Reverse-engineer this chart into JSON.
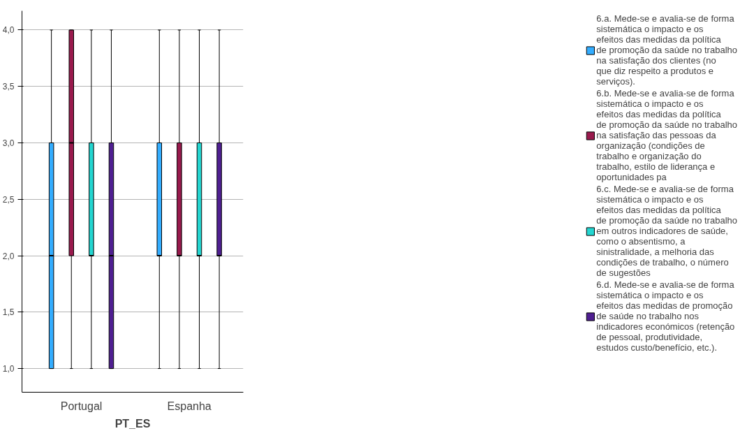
{
  "chart_data": {
    "type": "box",
    "xlabel": "PT_ES",
    "categories": [
      "Portugal",
      "Espanha"
    ],
    "ylim": [
      0.79,
      4.17
    ],
    "yticks": [
      {
        "value": 1,
        "label": "1,0"
      },
      {
        "value": 1.5,
        "label": "1,5"
      },
      {
        "value": 2,
        "label": "2,0"
      },
      {
        "value": 2.5,
        "label": "2,5"
      },
      {
        "value": 3,
        "label": "3,0"
      },
      {
        "value": 3.5,
        "label": "3,5"
      },
      {
        "value": 4,
        "label": "4,0"
      }
    ],
    "grid": "y",
    "legend": "right",
    "series": [
      {
        "name": "6.a. Mede-se e avalia-se de forma sistemática o impacto e os efeitos das medidas da política de promoção da saúde no trabalho na satisfação dos clientes (no que diz respeito a produtos e serviços).",
        "color": "#33adff",
        "boxes": [
          {
            "low": 1,
            "q1": 1,
            "median": 2,
            "q3": 3,
            "high": 4
          },
          {
            "low": 1,
            "q1": 2,
            "median": 2,
            "q3": 3,
            "high": 4
          }
        ]
      },
      {
        "name": "6.b. Mede-se e avalia-se de forma sistemática o impacto e os efeitos das medidas da política de promoção da saúde no trabalho na satisfação das pessoas da organização (condições de trabalho e organização do trabalho, estilo de liderança e oportunidades pa",
        "color": "#991a4d",
        "boxes": [
          {
            "low": 1,
            "q1": 2,
            "median": 3,
            "q3": 4,
            "high": 4
          },
          {
            "low": 1,
            "q1": 2,
            "median": 2,
            "q3": 3,
            "high": 4
          }
        ]
      },
      {
        "name": "6.c. Mede-se e avalia-se de forma sistemática o impacto e os efeitos das medidas da política de promoção da saúde no trabalho em outros indicadores de saúde, como o absentismo, a sinistralidade, a melhoria das condições de trabalho, o número de sugestões",
        "color": "#24d6d1",
        "boxes": [
          {
            "low": 1,
            "q1": 2,
            "median": 2,
            "q3": 3,
            "high": 4
          },
          {
            "low": 1,
            "q1": 2,
            "median": 2,
            "q3": 3,
            "high": 4
          }
        ]
      },
      {
        "name": "6.d. Mede-se e avalia-se de forma sistemática o impacto e os efeitos das medidas de promoção de saúde no trabalho nos indicadores económicos (retenção de pessoal, produtividade, estudos custo/benefício, etc.).",
        "color": "#4f1f91",
        "boxes": [
          {
            "low": 1,
            "q1": 1,
            "median": 2,
            "q3": 3,
            "high": 4
          },
          {
            "low": 1,
            "q1": 2,
            "median": 2,
            "q3": 3,
            "high": 4
          }
        ]
      }
    ]
  }
}
